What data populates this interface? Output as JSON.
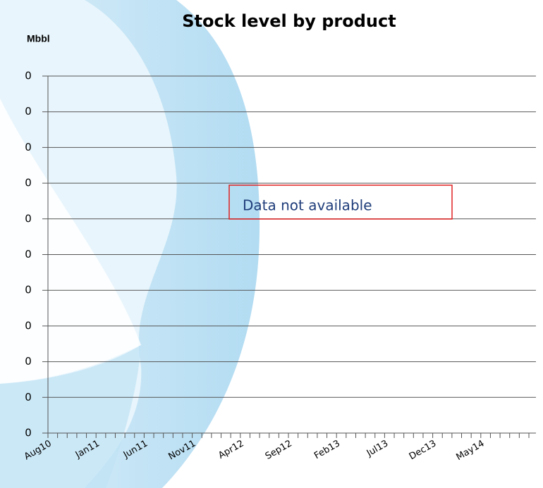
{
  "chart_data": {
    "type": "line",
    "title": "Stock level by product",
    "y_label": "Mbbl",
    "annotation": "Data not available",
    "categories": [
      "Aug10",
      null,
      null,
      null,
      null,
      "Jan11",
      null,
      null,
      null,
      null,
      "Jun11",
      null,
      null,
      null,
      null,
      "Nov11",
      null,
      null,
      null,
      null,
      "Apr12",
      null,
      null,
      null,
      null,
      "Sep12",
      null,
      null,
      null,
      null,
      "Feb13",
      null,
      null,
      null,
      null,
      "Jul13",
      null,
      null,
      null,
      null,
      "Dec13",
      null,
      null,
      null,
      null,
      "May14",
      null,
      null,
      null,
      null,
      null
    ],
    "series": [],
    "ylim": [
      0,
      0.4
    ],
    "yticks": [
      {
        "value": 0,
        "label": "0"
      },
      {
        "value": 0.04,
        "label": "0"
      },
      {
        "value": 0.08,
        "label": "0"
      },
      {
        "value": 0.12,
        "label": "0"
      },
      {
        "value": 0.16,
        "label": "0"
      },
      {
        "value": 0.2,
        "label": "0"
      },
      {
        "value": 0.24,
        "label": "0"
      },
      {
        "value": 0.28,
        "label": "0"
      },
      {
        "value": 0.32,
        "label": "0"
      },
      {
        "value": 0.36,
        "label": "0"
      },
      {
        "value": 0.4,
        "label": "0"
      }
    ],
    "grid": true
  }
}
